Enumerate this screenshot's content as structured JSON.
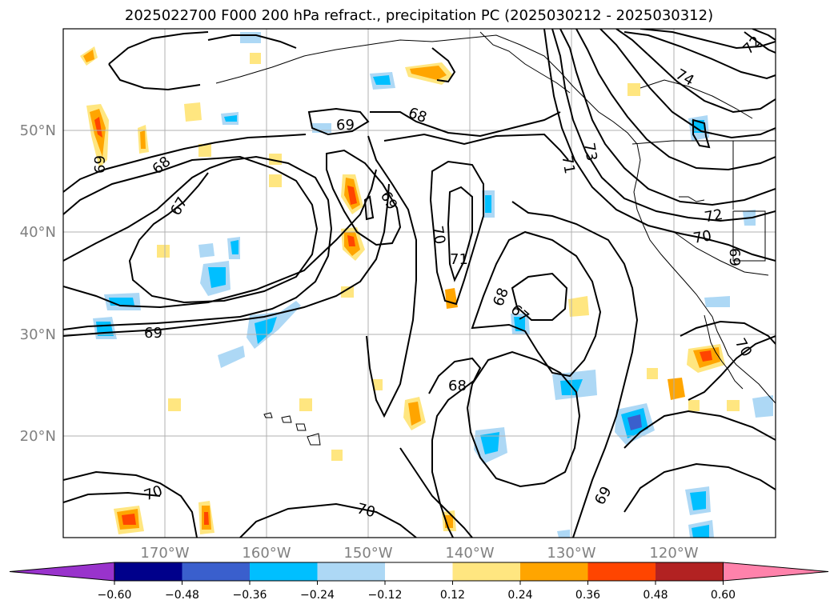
{
  "title": "2025022700 F000 200 hPa refract., precipitation PC (2025030212 - 2025030312)",
  "lon_labels": [
    "170°W",
    "160°W",
    "150°W",
    "140°W",
    "130°W",
    "120°W"
  ],
  "lat_labels": [
    "50°N",
    "40°N",
    "30°N",
    "20°N"
  ],
  "contour_labels": [
    "68",
    "67",
    "69",
    "68",
    "69",
    "69",
    "70",
    "71",
    "68",
    "67",
    "68",
    "69",
    "70",
    "73",
    "71",
    "74",
    "72",
    "70",
    "69",
    "70",
    "69",
    "70",
    "72"
  ],
  "colorbar": {
    "ticks": [
      "−0.60",
      "−0.48",
      "−0.36",
      "−0.24",
      "−0.12",
      "0.12",
      "0.24",
      "0.36",
      "0.48",
      "0.60"
    ],
    "colors": [
      "#9933cc",
      "#00008b",
      "#3a5fcd",
      "#00bfff",
      "#add8f5",
      "#ffffff",
      "#ffe680",
      "#ffa500",
      "#ff4500",
      "#b22222",
      "#ff82ab"
    ]
  }
}
